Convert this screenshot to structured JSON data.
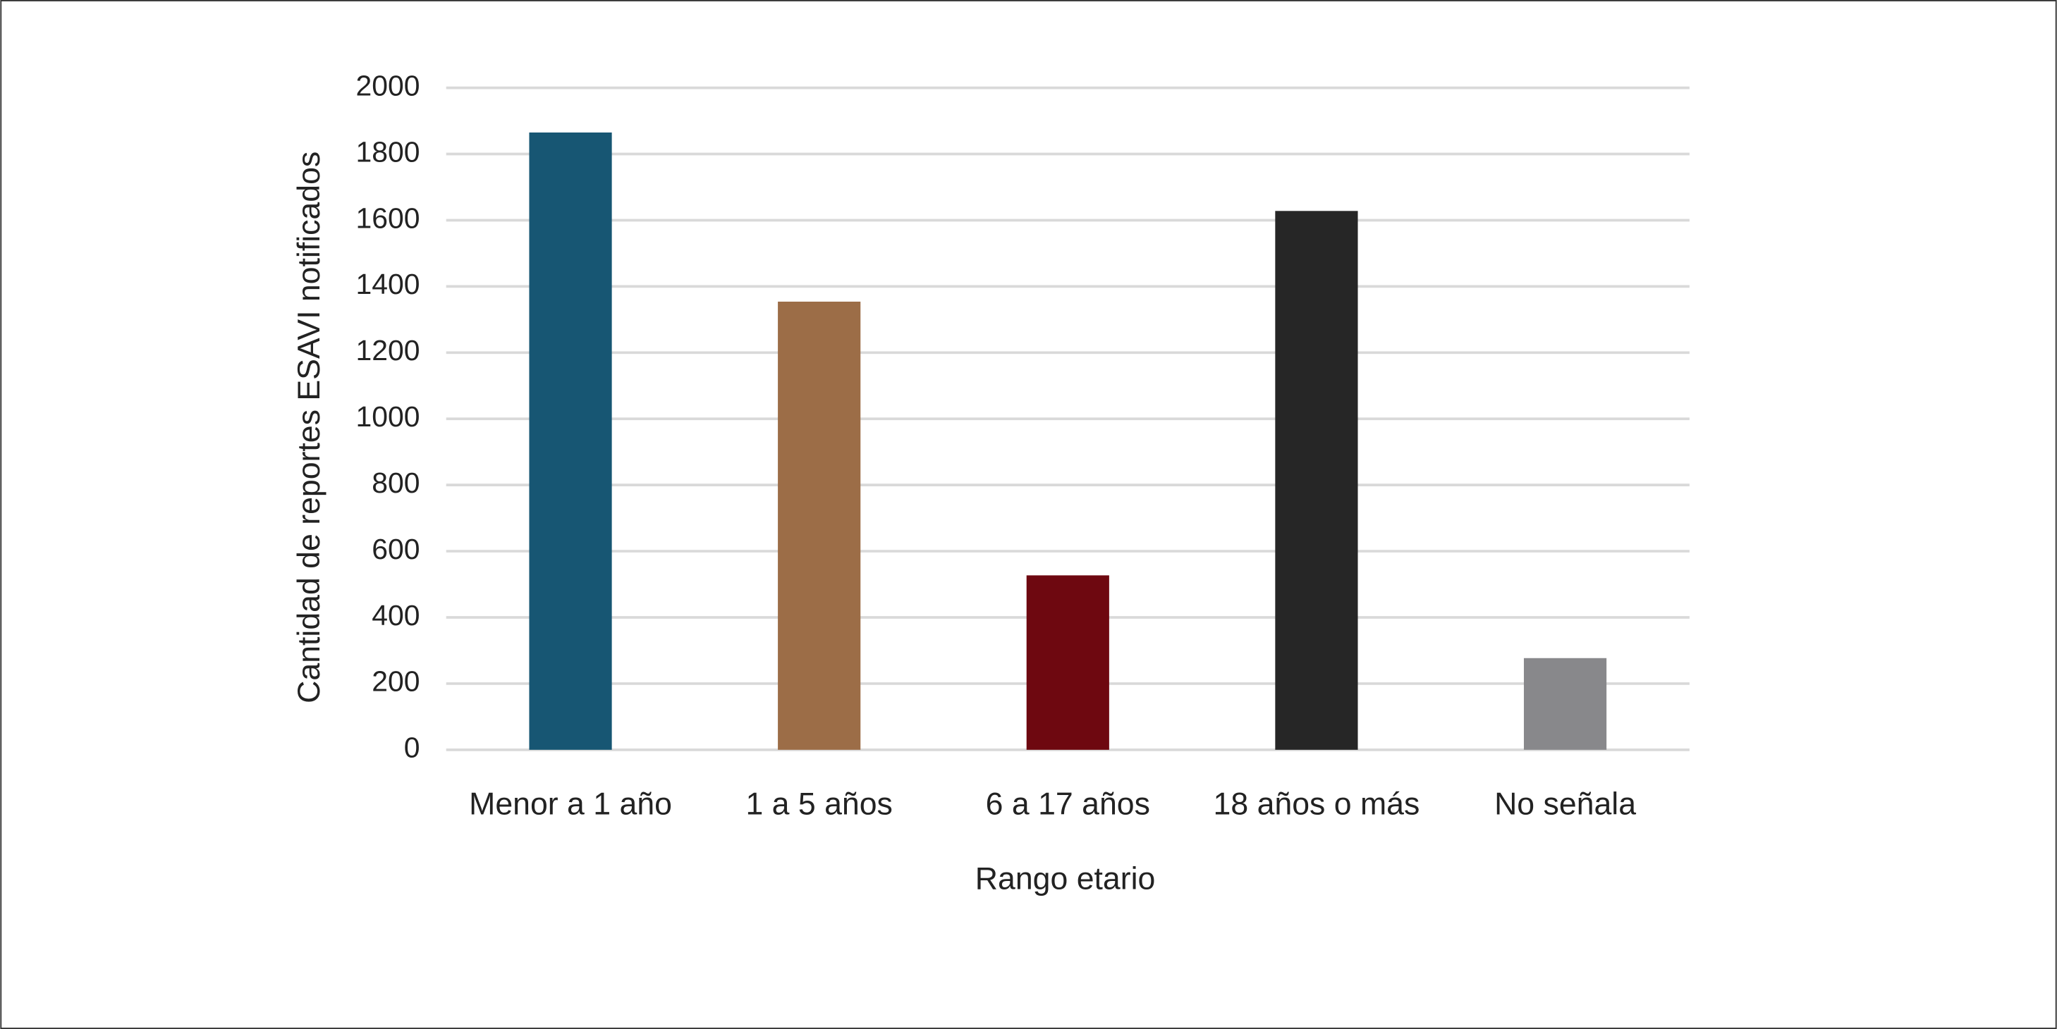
{
  "chart_data": {
    "type": "bar",
    "x_label": "Rango etario",
    "y_label": "Cantidad de reportes ESAVI notificados",
    "categories": [
      "Menor a 1 año",
      "1 a 5 años",
      "6 a 17 años",
      "18 años o más",
      "No señala"
    ],
    "values": [
      1865,
      1354,
      527,
      1628,
      277
    ],
    "colors": [
      "#175673",
      "#9c6d47",
      "#6e0810",
      "#262626",
      "#88888b"
    ],
    "ylim": [
      0,
      2000
    ],
    "yticks": [
      0,
      200,
      400,
      600,
      800,
      1000,
      1200,
      1400,
      1600,
      1800,
      2000
    ],
    "grid": true
  }
}
